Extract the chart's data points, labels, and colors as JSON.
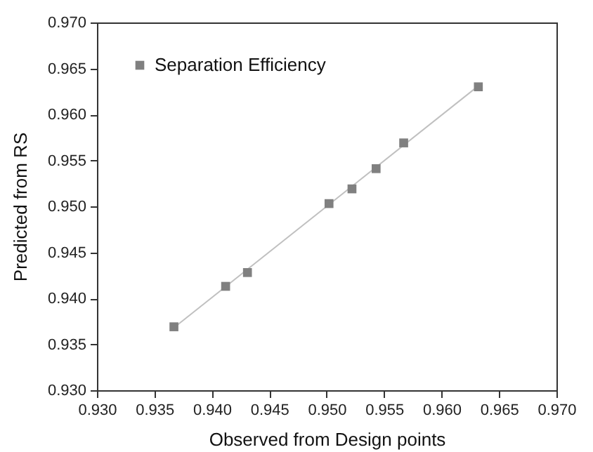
{
  "chart_data": {
    "type": "scatter",
    "xlabel": "Observed from Design points",
    "ylabel": "Predicted from RS",
    "xlim": [
      0.93,
      0.97
    ],
    "ylim": [
      0.93,
      0.97
    ],
    "xticks": [
      {
        "value": 0.93,
        "label": "0.930"
      },
      {
        "value": 0.935,
        "label": "0.935"
      },
      {
        "value": 0.94,
        "label": "0.940"
      },
      {
        "value": 0.945,
        "label": "0.945"
      },
      {
        "value": 0.95,
        "label": "0.950"
      },
      {
        "value": 0.955,
        "label": "0.955"
      },
      {
        "value": 0.96,
        "label": "0.960"
      },
      {
        "value": 0.965,
        "label": "0.965"
      },
      {
        "value": 0.97,
        "label": "0.970"
      }
    ],
    "yticks": [
      {
        "value": 0.93,
        "label": "0.930"
      },
      {
        "value": 0.935,
        "label": "0.935"
      },
      {
        "value": 0.94,
        "label": "0.940"
      },
      {
        "value": 0.945,
        "label": "0.945"
      },
      {
        "value": 0.95,
        "label": "0.950"
      },
      {
        "value": 0.955,
        "label": "0.955"
      },
      {
        "value": 0.96,
        "label": "0.960"
      },
      {
        "value": 0.965,
        "label": "0.965"
      },
      {
        "value": 0.97,
        "label": "0.970"
      }
    ],
    "legend": "top left",
    "series": [
      {
        "name": "Separation Efficiency",
        "color": "#808080",
        "marker": "square",
        "x": [
          0.9367,
          0.9412,
          0.9431,
          0.9502,
          0.9522,
          0.9543,
          0.9567,
          0.9632
        ],
        "values": [
          0.9369,
          0.9413,
          0.9428,
          0.9503,
          0.9519,
          0.9541,
          0.9569,
          0.963
        ]
      },
      {
        "type": "line",
        "color": "#c0c0c0",
        "x": [
          0.9367,
          0.9632
        ],
        "values": [
          0.9368,
          0.9631
        ]
      }
    ]
  }
}
